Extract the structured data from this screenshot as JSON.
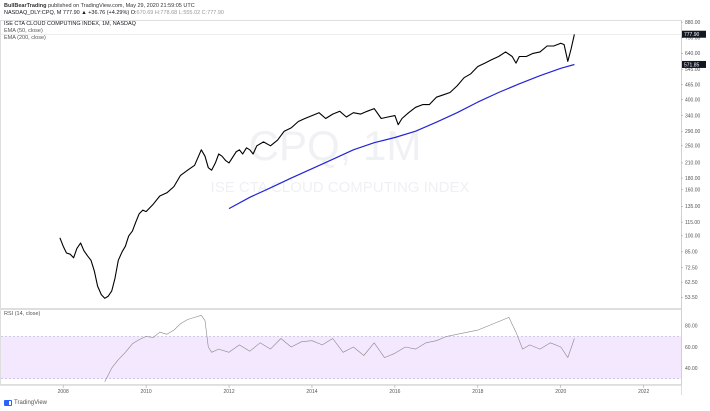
{
  "header": {
    "publish_prefix": "BullBearTrading",
    "publish_text": " published on TradingView.com, May 29, 2020 21:59:05 UTC",
    "symbol": "NASDAQ_DLY:CPQ, M",
    "ohlc": "777.90 ▲ +36.76 (+4.29%) O:",
    "ohlc_dim": "670.69 H:778.68 L:555.02 C:777.90"
  },
  "legends": {
    "main": "ISE CTA CLOUD COMPUTING INDEX, 1M, NASDAQ",
    "ema50": "EMA (50, close)",
    "ema200": "EMA (200, close)",
    "rsi": "RSI (14, close)"
  },
  "watermark": {
    "symbol": "CPQ, 1M",
    "name": "ISE CTA CLOUD COMPUTING INDEX"
  },
  "footer": {
    "brand": "TradingView"
  },
  "chart_data": [
    {
      "type": "line",
      "title": "ISE CTA CLOUD COMPUTING INDEX, 1M, NASDAQ",
      "y_scale": "log",
      "ylim": [
        48,
        890
      ],
      "xlim": [
        2006.5,
        2022.9
      ],
      "x_ticks": [
        "2008",
        "2010",
        "2012",
        "2014",
        "2016",
        "2018",
        "2020",
        "2022"
      ],
      "y_ticks": [
        "880.00",
        "750.00",
        "640.00",
        "545.00",
        "465.00",
        "400.00",
        "340.00",
        "290.00",
        "250.00",
        "210.00",
        "180.00",
        "160.00",
        "135.00",
        "115.00",
        "100.00",
        "85.00",
        "72.50",
        "62.50",
        "53.50",
        "46.00"
      ],
      "price_label": "777.90",
      "ema_label": "571.85",
      "series": [
        {
          "color": "#000000",
          "x": [
            2007.92,
            2008.0,
            2008.08,
            2008.17,
            2008.25,
            2008.33,
            2008.42,
            2008.5,
            2008.58,
            2008.67,
            2008.75,
            2008.83,
            2008.92,
            2009.0,
            2009.08,
            2009.17,
            2009.25,
            2009.33,
            2009.42,
            2009.5,
            2009.58,
            2009.67,
            2009.75,
            2009.83,
            2009.92,
            2010.0,
            2010.17,
            2010.33,
            2010.5,
            2010.67,
            2010.83,
            2011.0,
            2011.17,
            2011.33,
            2011.42,
            2011.5,
            2011.58,
            2011.67,
            2011.75,
            2011.83,
            2011.92,
            2012.0,
            2012.17,
            2012.25,
            2012.33,
            2012.42,
            2012.5,
            2012.58,
            2012.67,
            2012.83,
            2013.0,
            2013.17,
            2013.33,
            2013.5,
            2013.67,
            2013.83,
            2014.0,
            2014.17,
            2014.33,
            2014.5,
            2014.67,
            2014.83,
            2015.0,
            2015.17,
            2015.33,
            2015.5,
            2015.67,
            2015.83,
            2016.0,
            2016.08,
            2016.17,
            2016.33,
            2016.5,
            2016.67,
            2016.83,
            2017.0,
            2017.17,
            2017.33,
            2017.5,
            2017.67,
            2017.83,
            2018.0,
            2018.17,
            2018.33,
            2018.5,
            2018.67,
            2018.83,
            2018.92,
            2019.0,
            2019.17,
            2019.33,
            2019.5,
            2019.67,
            2019.83,
            2020.0,
            2020.08,
            2020.17,
            2020.25,
            2020.33
          ],
          "y": [
            98,
            90,
            84,
            83,
            80,
            88,
            93,
            86,
            82,
            78,
            70,
            60,
            55,
            53,
            54,
            57,
            65,
            78,
            85,
            90,
            100,
            105,
            115,
            125,
            130,
            128,
            138,
            150,
            155,
            165,
            185,
            195,
            205,
            240,
            225,
            200,
            195,
            210,
            230,
            225,
            215,
            210,
            235,
            240,
            230,
            245,
            240,
            230,
            250,
            260,
            250,
            265,
            290,
            300,
            320,
            330,
            340,
            350,
            330,
            345,
            355,
            335,
            350,
            345,
            355,
            365,
            330,
            335,
            340,
            310,
            330,
            350,
            370,
            380,
            380,
            410,
            420,
            430,
            460,
            500,
            520,
            560,
            580,
            600,
            620,
            650,
            620,
            580,
            620,
            620,
            640,
            650,
            690,
            690,
            710,
            700,
            590,
            670,
            778
          ]
        },
        {
          "name": "EMA (200, close)",
          "color": "#2424d6",
          "x": [
            2012.0,
            2012.5,
            2013.0,
            2013.5,
            2014.0,
            2014.5,
            2015.0,
            2015.5,
            2016.0,
            2016.5,
            2017.0,
            2017.5,
            2018.0,
            2018.5,
            2019.0,
            2019.5,
            2020.0,
            2020.33
          ],
          "y": [
            132,
            148,
            163,
            180,
            198,
            218,
            240,
            258,
            272,
            290,
            318,
            350,
            390,
            430,
            470,
            510,
            550,
            572
          ]
        }
      ]
    },
    {
      "type": "line",
      "title": "RSI (14, close)",
      "ylim": [
        25,
        95
      ],
      "overbought": 70,
      "oversold": 30,
      "y_ticks": [
        "80.00",
        "60.00",
        "40.00"
      ],
      "series": [
        {
          "color": "#888888",
          "x": [
            2009.0,
            2009.17,
            2009.33,
            2009.5,
            2009.67,
            2009.83,
            2010.0,
            2010.17,
            2010.33,
            2010.5,
            2010.67,
            2010.83,
            2011.0,
            2011.17,
            2011.33,
            2011.42,
            2011.5,
            2011.58,
            2011.75,
            2012.0,
            2012.25,
            2012.5,
            2012.75,
            2013.0,
            2013.25,
            2013.5,
            2013.75,
            2014.0,
            2014.25,
            2014.5,
            2014.75,
            2015.0,
            2015.25,
            2015.5,
            2015.75,
            2016.0,
            2016.25,
            2016.5,
            2016.75,
            2017.0,
            2017.25,
            2017.5,
            2017.75,
            2018.0,
            2018.25,
            2018.5,
            2018.75,
            2018.92,
            2019.08,
            2019.25,
            2019.5,
            2019.75,
            2020.0,
            2020.17,
            2020.33
          ],
          "y": [
            27,
            40,
            48,
            55,
            63,
            67,
            70,
            69,
            74,
            72,
            76,
            82,
            86,
            88,
            90,
            85,
            60,
            55,
            58,
            55,
            62,
            56,
            64,
            58,
            68,
            60,
            65,
            66,
            62,
            68,
            55,
            60,
            52,
            64,
            50,
            54,
            60,
            58,
            64,
            66,
            70,
            72,
            74,
            76,
            80,
            84,
            88,
            74,
            58,
            62,
            58,
            64,
            60,
            50,
            68
          ]
        }
      ]
    }
  ]
}
